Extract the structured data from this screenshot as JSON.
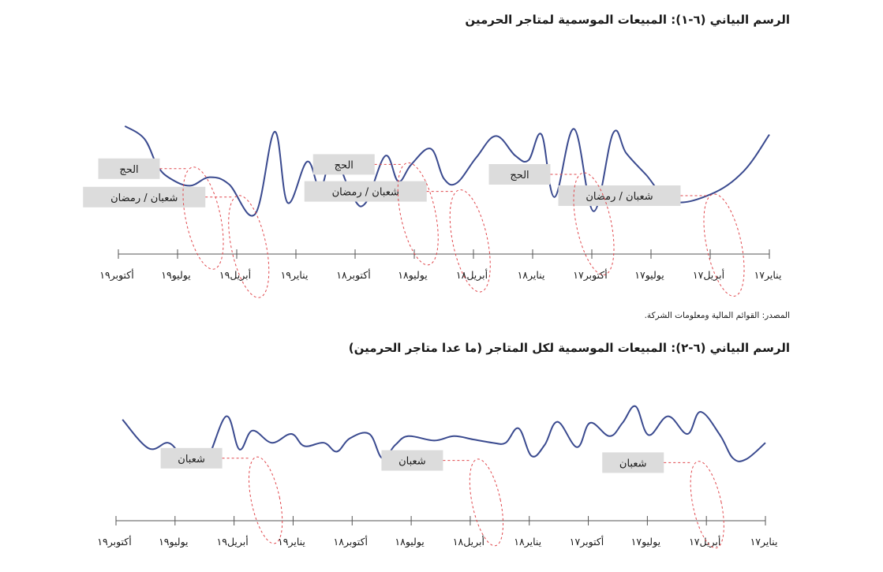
{
  "chart_data": [
    {
      "type": "line",
      "title": "الرسم البياني (٦-١): المبيعات الموسمية لمتاجر الحرمين",
      "x_direction": "right-to-left",
      "xticks": [
        "يناير١٧",
        "أبريل١٧",
        "يوليو١٧",
        "أكتوبر١٧",
        "يناير١٨",
        "أبريل١٨",
        "يوليو١٨",
        "أكتوبر١٨",
        "يناير١٩",
        "أبريل١٩",
        "يوليو١٩",
        "أكتوبر١٩"
      ],
      "yaxis": "none",
      "ylim": [
        0,
        100
      ],
      "series": [
        {
          "color": "#3a4a8f",
          "x": [
            0.0,
            0.04,
            0.09,
            0.15,
            0.19,
            0.22,
            0.24,
            0.27,
            0.3,
            0.33,
            0.35,
            0.37,
            0.39,
            0.42,
            0.45,
            0.48,
            0.5,
            0.52,
            0.55,
            0.57,
            0.59,
            0.62,
            0.64,
            0.67,
            0.69,
            0.71,
            0.74,
            0.76,
            0.79,
            0.83,
            0.86,
            0.89,
            0.92,
            0.94,
            0.96,
            0.99
          ],
          "values": [
            42,
            68,
            84,
            89,
            70,
            55,
            41,
            96,
            38,
            86,
            42,
            60,
            57,
            43,
            58,
            76,
            73,
            52,
            63,
            75,
            57,
            90,
            86,
            57,
            80,
            61,
            90,
            40,
            98,
            77,
            72,
            78,
            73,
            64,
            45,
            36
          ]
        }
      ],
      "annotations": [
        {
          "label": "شعبان / رمضان",
          "x": 0.1,
          "y": 85
        },
        {
          "label": "الحج",
          "x": 0.3,
          "y": 70
        },
        {
          "label": "شعبان / رمضان",
          "x": 0.49,
          "y": 82
        },
        {
          "label": "الحج",
          "x": 0.57,
          "y": 63
        },
        {
          "label": "شعبان / رمضان",
          "x": 0.83,
          "y": 86
        },
        {
          "label": "الحج",
          "x": 0.9,
          "y": 66
        }
      ]
    },
    {
      "type": "line",
      "title": "الرسم البياني (٦-٢): المبيعات الموسمية لكل المتاجر (ما عدا متاجر الحرمين)",
      "x_direction": "right-to-left",
      "xticks": [
        "يناير١٧",
        "أبريل١٧",
        "يوليو١٧",
        "أكتوبر١٧",
        "يناير١٨",
        "أبريل١٨",
        "يوليو١٨",
        "أكتوبر١٨",
        "يناير١٩",
        "أبريل١٩",
        "يوليو١٩",
        "أكتوبر١٩"
      ],
      "yaxis": "none",
      "ylim": [
        0,
        100
      ],
      "series": [
        {
          "color": "#3a4a8f",
          "x": [
            0.0,
            0.03,
            0.05,
            0.07,
            0.1,
            0.12,
            0.15,
            0.18,
            0.2,
            0.22,
            0.24,
            0.27,
            0.29,
            0.32,
            0.34,
            0.36,
            0.38,
            0.4,
            0.42,
            0.45,
            0.48,
            0.51,
            0.55,
            0.57,
            0.59,
            0.61,
            0.64,
            0.66,
            0.68,
            0.71,
            0.73,
            0.76,
            0.79,
            0.81,
            0.83,
            0.86,
            0.88,
            0.9,
            0.92,
            0.95,
            0.99
          ],
          "values": [
            58,
            73,
            72,
            51,
            30,
            50,
            34,
            51,
            25,
            40,
            52,
            40,
            62,
            39,
            60,
            70,
            45,
            58,
            58,
            55,
            52,
            56,
            52,
            60,
            72,
            50,
            54,
            66,
            58,
            61,
            50,
            58,
            47,
            64,
            34,
            73,
            69,
            68,
            58,
            63,
            37
          ]
        }
      ],
      "annotations": [
        {
          "label": "شعبان",
          "x": 0.12,
          "y": 76
        },
        {
          "label": "شعبان",
          "x": 0.46,
          "y": 74
        },
        {
          "label": "شعبان",
          "x": 0.8,
          "y": 72
        }
      ]
    }
  ],
  "source": "المصدر: القوائم المالية ومعلومات الشركة."
}
